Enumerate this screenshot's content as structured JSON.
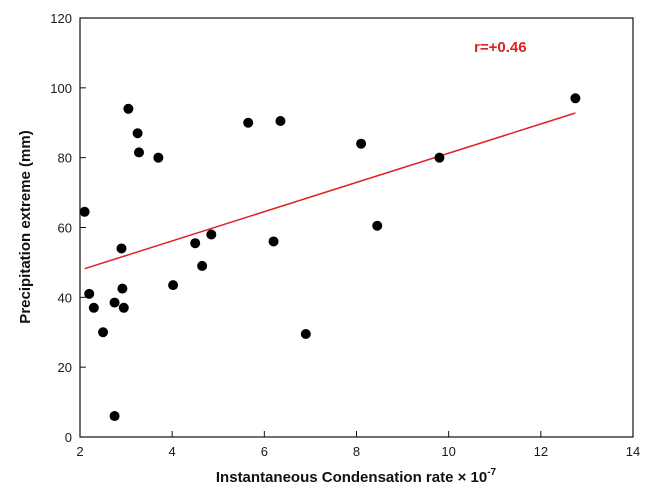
{
  "chart_data": {
    "type": "scatter",
    "xlabel": "Instantaneous Condensation rate × 10",
    "xlabel_exponent": "-7",
    "ylabel": "Precipitation extreme (mm)",
    "xlim": [
      2,
      14
    ],
    "ylim": [
      0,
      120
    ],
    "x_ticks": [
      2,
      4,
      6,
      8,
      10,
      12,
      14
    ],
    "y_ticks": [
      0,
      20,
      40,
      60,
      80,
      100,
      120
    ],
    "grid": false,
    "annotation": {
      "text": "r=+0.46",
      "color": "#e02020"
    },
    "point_color": "#000000",
    "points": [
      {
        "x": 2.1,
        "y": 64.5
      },
      {
        "x": 2.2,
        "y": 41
      },
      {
        "x": 2.3,
        "y": 37
      },
      {
        "x": 2.5,
        "y": 30
      },
      {
        "x": 2.75,
        "y": 38.5
      },
      {
        "x": 2.75,
        "y": 6
      },
      {
        "x": 2.9,
        "y": 54
      },
      {
        "x": 2.92,
        "y": 42.5
      },
      {
        "x": 2.95,
        "y": 37
      },
      {
        "x": 3.05,
        "y": 94
      },
      {
        "x": 3.25,
        "y": 87
      },
      {
        "x": 3.28,
        "y": 81.5
      },
      {
        "x": 3.7,
        "y": 80
      },
      {
        "x": 4.02,
        "y": 43.5
      },
      {
        "x": 4.5,
        "y": 55.5
      },
      {
        "x": 4.65,
        "y": 49
      },
      {
        "x": 4.85,
        "y": 58
      },
      {
        "x": 5.65,
        "y": 90
      },
      {
        "x": 6.2,
        "y": 56
      },
      {
        "x": 6.35,
        "y": 90.5
      },
      {
        "x": 6.9,
        "y": 29.5
      },
      {
        "x": 8.1,
        "y": 84
      },
      {
        "x": 8.45,
        "y": 60.5
      },
      {
        "x": 9.8,
        "y": 80
      },
      {
        "x": 12.75,
        "y": 97
      }
    ],
    "trendline": {
      "color": "#e02020",
      "x": [
        2.1,
        12.75
      ],
      "y": [
        48.2,
        92.8
      ]
    }
  }
}
